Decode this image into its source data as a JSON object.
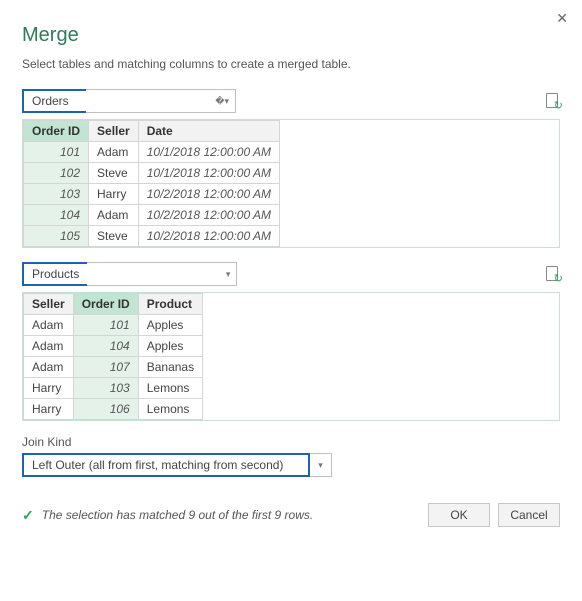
{
  "title": "Merge",
  "subtitle": "Select tables and matching columns to create a merged table.",
  "table1": {
    "name": "Orders",
    "columns": [
      "Order ID",
      "Seller",
      "Date"
    ],
    "selectedCol": 0,
    "rows": [
      [
        "101",
        "Adam",
        "10/1/2018 12:00:00 AM"
      ],
      [
        "102",
        "Steve",
        "10/1/2018 12:00:00 AM"
      ],
      [
        "103",
        "Harry",
        "10/2/2018 12:00:00 AM"
      ],
      [
        "104",
        "Adam",
        "10/2/2018 12:00:00 AM"
      ],
      [
        "105",
        "Steve",
        "10/2/2018 12:00:00 AM"
      ]
    ]
  },
  "table2": {
    "name": "Products",
    "columns": [
      "Seller",
      "Order ID",
      "Product"
    ],
    "selectedCol": 1,
    "rows": [
      [
        "Adam",
        "101",
        "Apples"
      ],
      [
        "Adam",
        "104",
        "Apples"
      ],
      [
        "Adam",
        "107",
        "Bananas"
      ],
      [
        "Harry",
        "103",
        "Lemons"
      ],
      [
        "Harry",
        "106",
        "Lemons"
      ]
    ]
  },
  "joinKindLabel": "Join Kind",
  "joinKindValue": "Left Outer (all from first, matching from second)",
  "statusText": "The selection has matched 9 out of the first 9 rows.",
  "buttons": {
    "ok": "OK",
    "cancel": "Cancel"
  }
}
